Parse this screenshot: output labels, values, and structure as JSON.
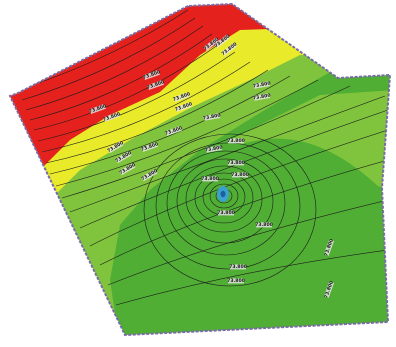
{
  "map": {
    "colors": {
      "outside": "#ffffff",
      "zone_red": "#e5211d",
      "zone_yellow": "#e8ea2a",
      "zone_lightgreen": "#7fc43c",
      "zone_green": "#4fae33",
      "zone_center": "#3aa0d6",
      "contour": "#1d1d1d",
      "boundary": "#7a6aa8"
    },
    "contour_labels": [
      "73.800",
      "73.800",
      "73.800",
      "73.800",
      "73.800",
      "73.800",
      "73.800",
      "73.800",
      "73.800",
      "73.800",
      "73.800",
      "73.800",
      "73.800",
      "73.800",
      "73.800",
      "73.800",
      "73.800",
      "73.800",
      "73.800",
      "73.800",
      "73.800",
      "73.800",
      "73.800",
      "73.800",
      "73.800",
      "73.800",
      "73.800",
      "73.800",
      "73.800"
    ]
  }
}
